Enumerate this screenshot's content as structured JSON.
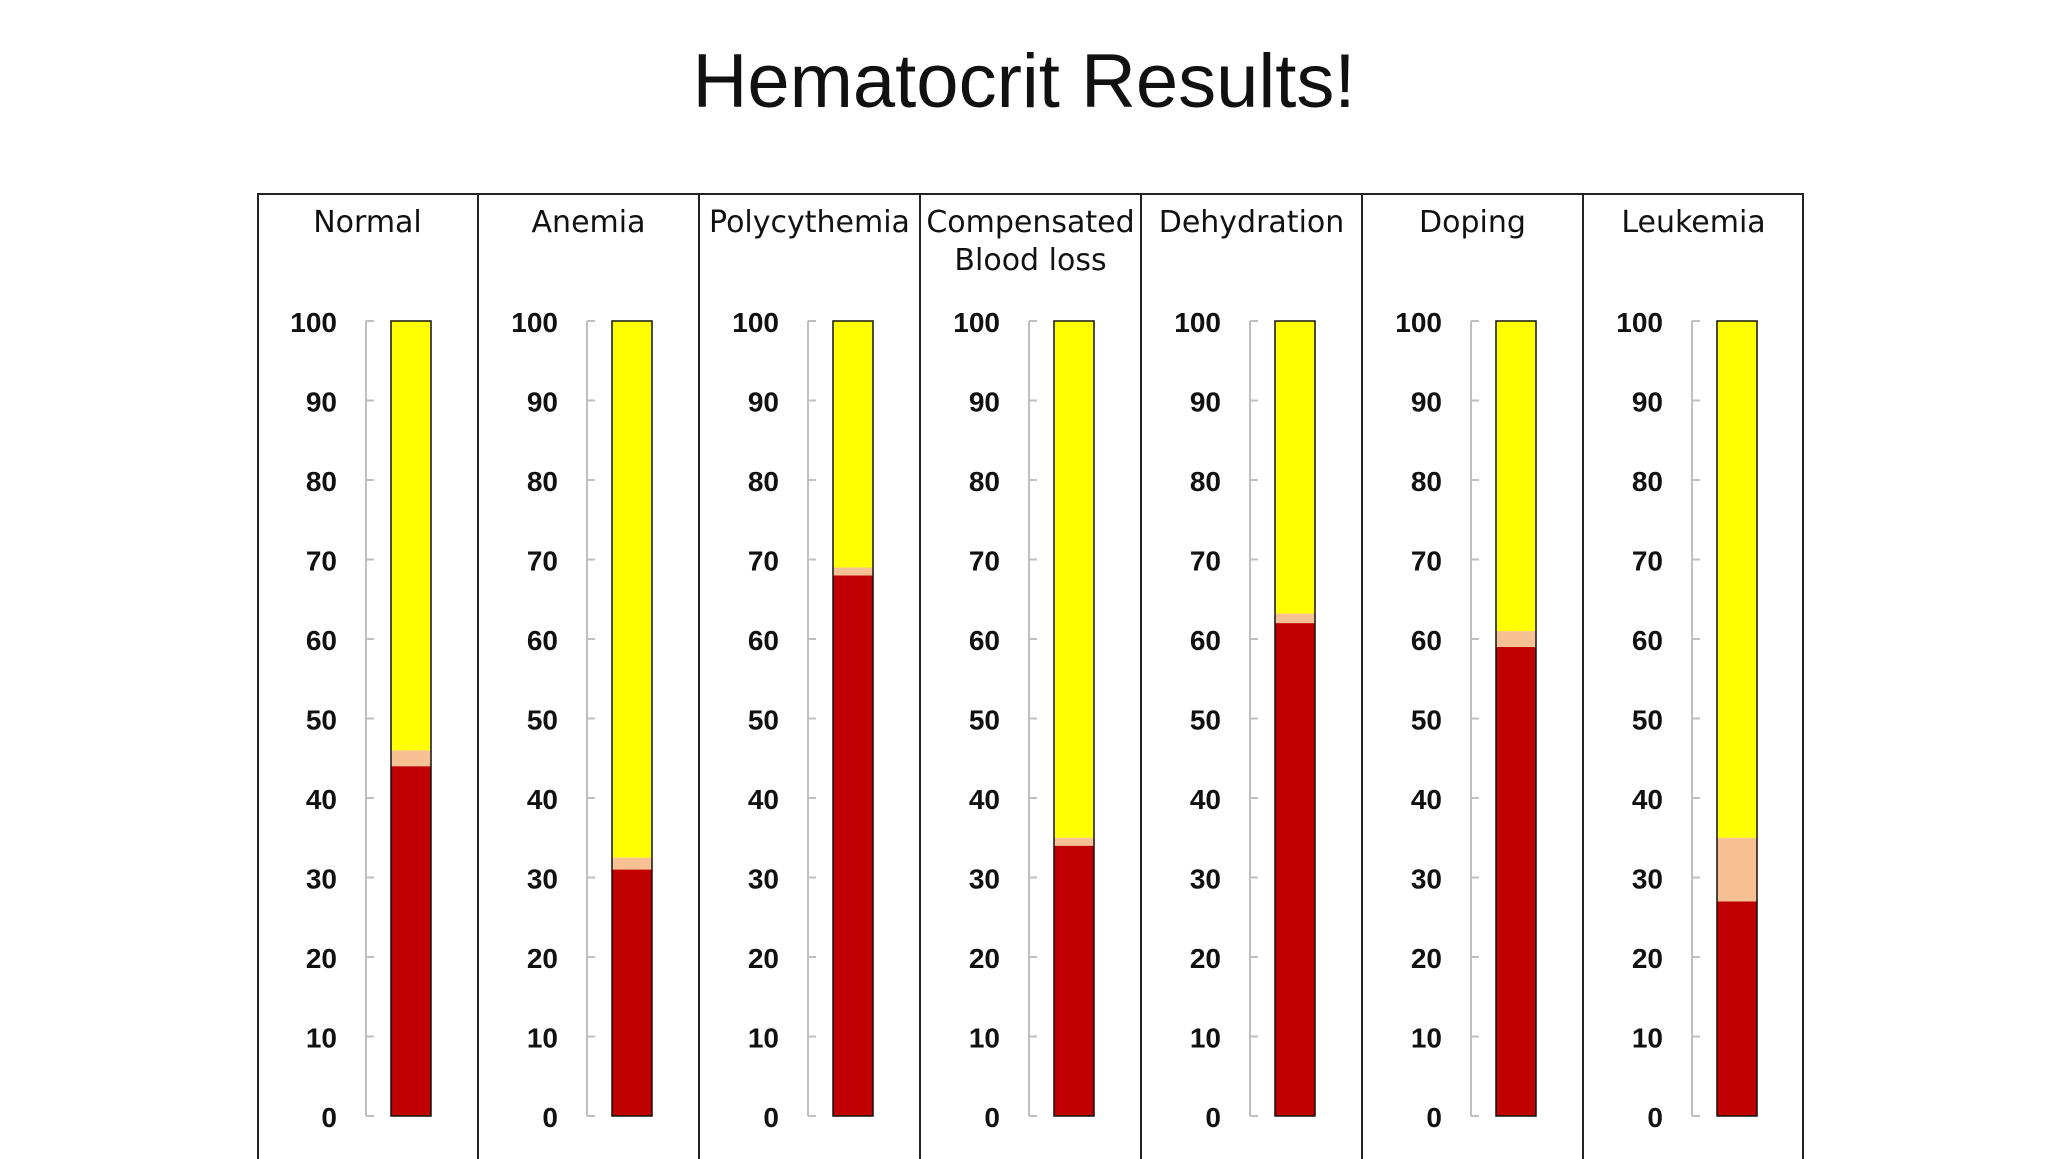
{
  "slide": {
    "title": "Hematocrit Results!"
  },
  "chart_data": {
    "type": "bar",
    "title": "",
    "xlabel": "",
    "ylabel": "",
    "ylim": [
      0,
      100
    ],
    "yticks": [
      "0",
      "10",
      "20",
      "30",
      "40",
      "50",
      "60",
      "70",
      "80",
      "90",
      "100"
    ],
    "categories": [
      [
        "Normal"
      ],
      [
        "Anemia"
      ],
      [
        "Polycythemia"
      ],
      [
        "Compensated",
        "Blood loss"
      ],
      [
        "Dehydration"
      ],
      [
        "Doping"
      ],
      [
        "Leukemia"
      ]
    ],
    "series": [
      {
        "values": [
          44,
          31,
          68,
          34,
          62,
          59,
          27
        ]
      },
      {
        "values": [
          2,
          1.5,
          1,
          1,
          1.2,
          2,
          8
        ]
      },
      {
        "values": [
          55,
          68,
          32,
          66,
          37,
          40,
          66
        ]
      }
    ],
    "colors": {
      "rbc": "#c00000",
      "buffy": "#f8c193",
      "plasma": "#ffff00",
      "frame_border": "#222222",
      "axis": "#bfbfbf"
    },
    "legend": "none",
    "grid": false
  }
}
